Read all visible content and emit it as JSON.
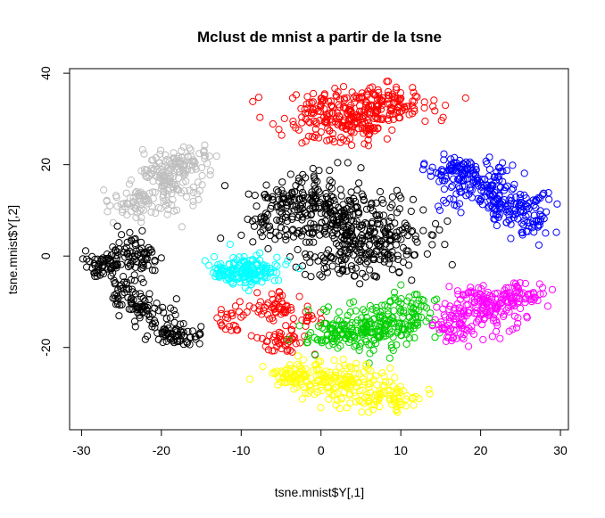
{
  "chart_data": {
    "type": "scatter",
    "title": "Mclust de mnist a partir de la tsne",
    "xlabel": "tsne.mnist$Y[,1]",
    "ylabel": "tsne.mnist$Y[,2]",
    "xlim": [
      -31.5,
      31
    ],
    "ylim": [
      -38,
      41
    ],
    "xticks": [
      -30,
      -20,
      -10,
      0,
      10,
      20,
      30
    ],
    "yticks": [
      -20,
      0,
      20,
      40
    ],
    "xtick_labels": [
      "-30",
      "-20",
      "-10",
      "0",
      "10",
      "20",
      "30"
    ],
    "ytick_labels": [
      "-20",
      "0",
      "20",
      "40"
    ],
    "grid": false,
    "marker": "open-circle",
    "series": [
      {
        "name": "cluster-red-top",
        "color": "#ff0000",
        "blobs": [
          [
            4,
            32,
            6,
            2.5,
            180
          ],
          [
            2,
            28,
            4,
            2.5,
            90
          ],
          [
            8,
            34,
            3,
            2,
            60
          ]
        ]
      },
      {
        "name": "cluster-blue",
        "color": "#0000ff",
        "blobs": [
          [
            17,
            19,
            3,
            2,
            70
          ],
          [
            20,
            15,
            3,
            3,
            110
          ],
          [
            24,
            11,
            3,
            3,
            90
          ],
          [
            26.5,
            7,
            1.5,
            2,
            30
          ]
        ]
      },
      {
        "name": "cluster-gray",
        "color": "#bebebe",
        "blobs": [
          [
            -19,
            17,
            3,
            3,
            120
          ],
          [
            -23,
            11,
            3,
            2.5,
            70
          ],
          [
            -17,
            21,
            2,
            2,
            50
          ]
        ]
      },
      {
        "name": "cluster-black-center",
        "color": "#000000",
        "blobs": [
          [
            3,
            8,
            5,
            5,
            220
          ],
          [
            -2,
            12,
            4,
            4,
            100
          ],
          [
            8,
            3,
            4,
            5,
            120
          ],
          [
            2,
            -1,
            3,
            3,
            60
          ],
          [
            -6,
            7,
            3,
            3,
            50
          ]
        ]
      },
      {
        "name": "cluster-black-left",
        "color": "#000000",
        "blobs": [
          [
            -27,
            -2,
            2,
            2,
            60
          ],
          [
            -23,
            0,
            2,
            2.5,
            70
          ],
          [
            -24.5,
            -7,
            1.5,
            2,
            40
          ],
          [
            -22,
            -12,
            2,
            2,
            50
          ],
          [
            -19,
            -17,
            2,
            1.5,
            60
          ],
          [
            -16,
            -18,
            1,
            1,
            10
          ]
        ]
      },
      {
        "name": "cluster-cyan",
        "color": "#00ffff",
        "blobs": [
          [
            -9,
            -3,
            2.5,
            2,
            140
          ],
          [
            -12,
            -4,
            1.5,
            1.5,
            30
          ]
        ]
      },
      {
        "name": "cluster-red-mid",
        "color": "#ff0000",
        "blobs": [
          [
            -6,
            -11,
            2,
            2,
            50
          ],
          [
            -5,
            -19,
            2,
            2,
            40
          ],
          [
            -11,
            -14,
            1.5,
            2,
            25
          ],
          [
            -2,
            -14,
            1.5,
            2,
            20
          ]
        ]
      },
      {
        "name": "cluster-green",
        "color": "#00cd00",
        "blobs": [
          [
            7,
            -16,
            4,
            3,
            170
          ],
          [
            11,
            -12,
            2.5,
            3,
            60
          ],
          [
            2,
            -18,
            2,
            2,
            50
          ]
        ]
      },
      {
        "name": "cluster-magenta",
        "color": "#ff00ff",
        "blobs": [
          [
            20,
            -11,
            3,
            3,
            140
          ],
          [
            25,
            -9,
            2,
            2,
            60
          ],
          [
            17,
            -16,
            2,
            2,
            50
          ]
        ]
      },
      {
        "name": "cluster-yellow",
        "color": "#ffff00",
        "blobs": [
          [
            2,
            -27,
            4,
            2.5,
            140
          ],
          [
            8,
            -31,
            3,
            2,
            80
          ],
          [
            -3,
            -26,
            2,
            1.5,
            50
          ]
        ]
      }
    ]
  }
}
